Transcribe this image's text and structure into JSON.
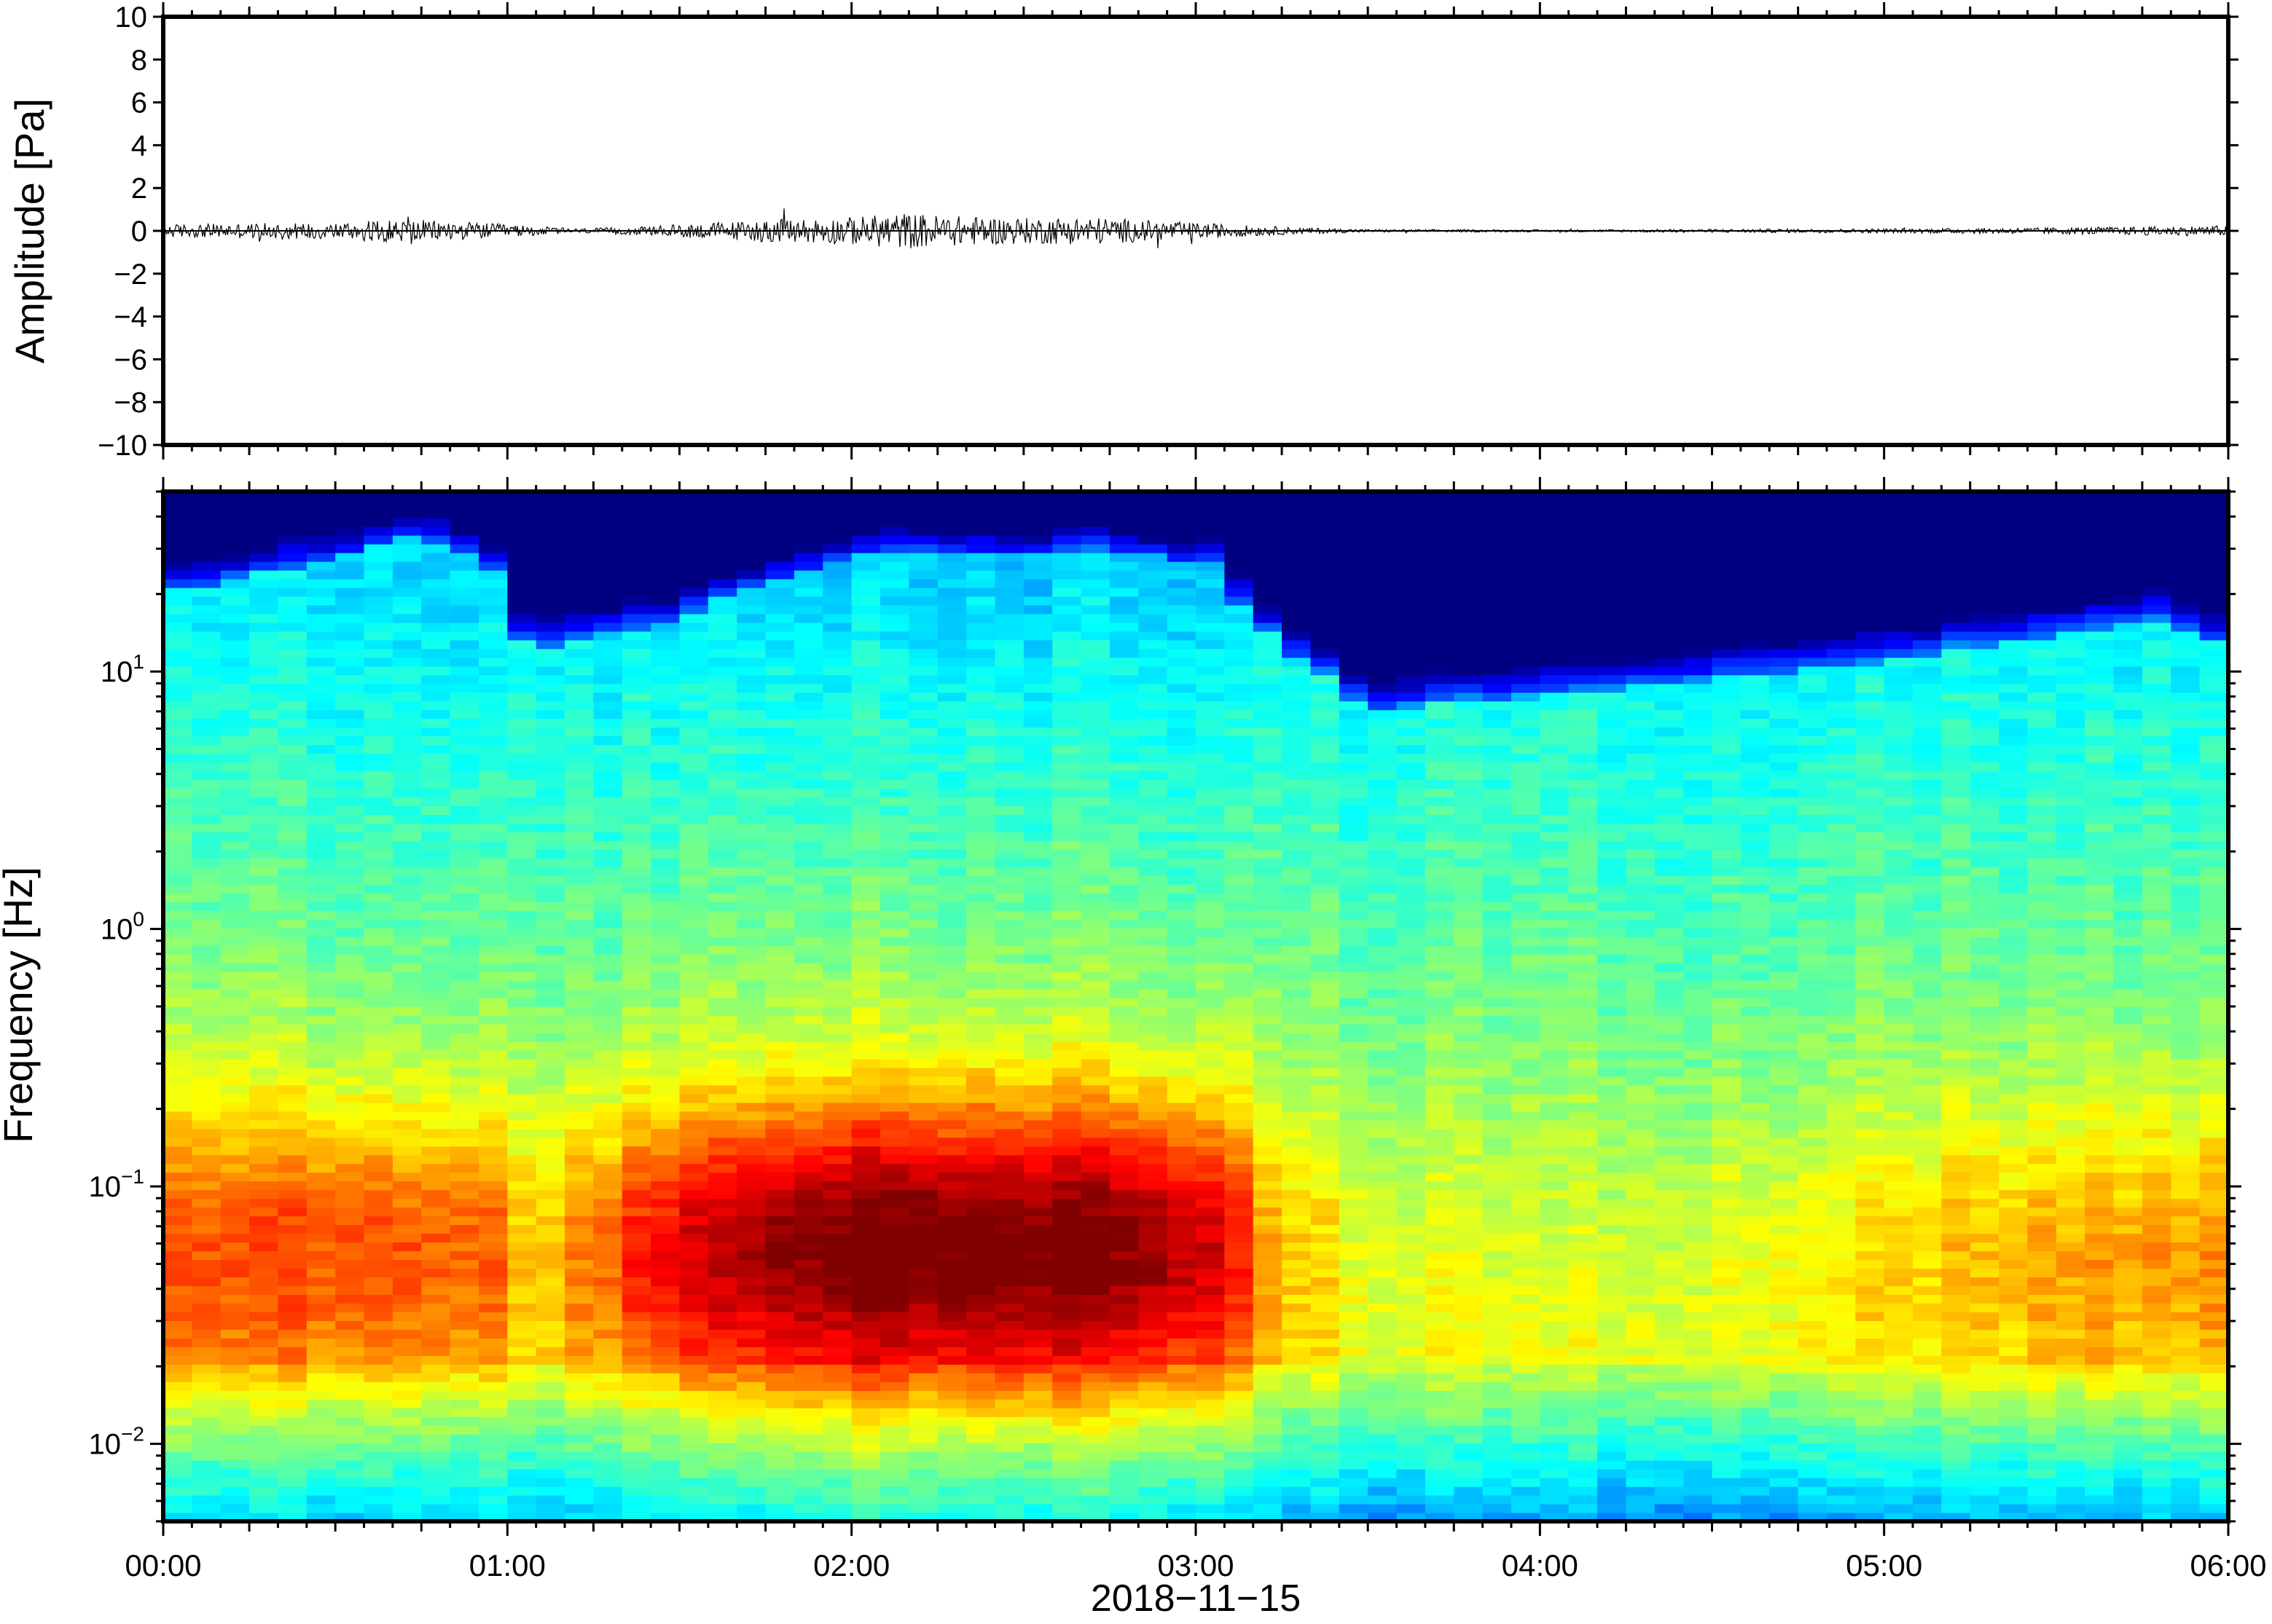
{
  "chart_data": [
    {
      "type": "line",
      "ylabel": "Amplitude [Pa]",
      "ylim": [
        -10,
        10
      ],
      "yticks": [
        10,
        8,
        6,
        4,
        2,
        0,
        -2,
        -4,
        -6,
        -8,
        -10
      ],
      "ytick_labels": [
        "10",
        "8",
        "6",
        "4",
        "2",
        "0",
        "−2",
        "−4",
        "−6",
        "−8",
        "−10"
      ],
      "x_hours_range": [
        0,
        6
      ],
      "grid": false,
      "envelope": {
        "x_hours": [
          0.0,
          0.25,
          0.5,
          0.7,
          0.9,
          1.0,
          1.2,
          1.4,
          1.6,
          1.8,
          2.0,
          2.15,
          2.3,
          2.5,
          2.7,
          2.9,
          3.1,
          3.3,
          3.5,
          4.0,
          4.5,
          5.0,
          5.5,
          6.0
        ],
        "y_pa": [
          0.3,
          0.35,
          0.4,
          0.55,
          0.4,
          0.3,
          0.1,
          0.2,
          0.4,
          0.55,
          0.65,
          0.85,
          0.7,
          0.6,
          0.65,
          0.45,
          0.3,
          0.15,
          0.07,
          0.05,
          0.08,
          0.1,
          0.15,
          0.25
        ]
      }
    },
    {
      "type": "heatmap",
      "ylabel": "Frequency [Hz]",
      "xlabel": "2018−11−15",
      "yscale": "log",
      "ylim": [
        0.005,
        50
      ],
      "yticks": [
        0.01,
        0.1,
        1,
        10
      ],
      "ytick_labels": [
        {
          "base": "10",
          "exp": "−2"
        },
        {
          "base": "10",
          "exp": "−1"
        },
        {
          "base": "10",
          "exp": "0"
        },
        {
          "base": "10",
          "exp": "1"
        }
      ],
      "xticks_hours": [
        0,
        1,
        2,
        3,
        4,
        5,
        6
      ],
      "xtick_labels": [
        "00:00",
        "01:00",
        "02:00",
        "03:00",
        "04:00",
        "05:00",
        "06:00"
      ],
      "colormap": "jet",
      "colors": {
        "low": "#00007f",
        "high": "#ff5a1f"
      },
      "noise_ceiling_hz": {
        "x_hours": [
          0.0,
          0.3,
          0.6,
          0.75,
          0.95,
          1.05,
          1.5,
          2.1,
          2.5,
          2.7,
          3.05,
          3.15,
          3.3,
          3.5,
          4.0,
          4.4,
          4.7,
          5.0,
          5.5,
          5.8,
          6.0
        ],
        "hz": [
          20,
          24,
          30,
          34,
          26,
          12,
          16,
          30,
          28,
          30,
          26,
          16,
          11,
          7,
          8,
          9,
          10,
          11,
          14,
          16,
          12
        ]
      },
      "level_profile": {
        "x_hours": [
          0.0,
          0.5,
          1.0,
          1.05,
          1.5,
          2.0,
          2.5,
          2.9,
          3.1,
          3.2,
          3.5,
          4.0,
          4.5,
          5.0,
          5.5,
          6.0
        ],
        "strength": [
          0.45,
          0.5,
          0.45,
          0.2,
          0.7,
          0.95,
          0.95,
          0.85,
          0.7,
          0.3,
          0.1,
          0.05,
          0.1,
          0.2,
          0.3,
          0.35
        ]
      }
    }
  ]
}
